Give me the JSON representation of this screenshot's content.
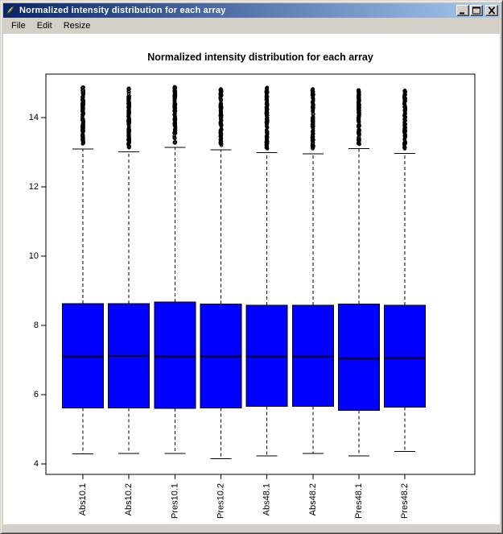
{
  "window": {
    "title": "Normalized intensity distribution for each array",
    "icon": "feather-icon",
    "controls": [
      {
        "name": "minimize",
        "icon": "minimize-icon"
      },
      {
        "name": "maximize",
        "icon": "maximize-icon"
      },
      {
        "name": "close",
        "icon": "close-icon"
      }
    ],
    "colors": {
      "titlebar_from": "#0a246a",
      "titlebar_to": "#a6caf0",
      "chrome": "#d4d0c8"
    }
  },
  "menu": {
    "items": [
      "File",
      "Edit",
      "Resize"
    ]
  },
  "chart_data": {
    "type": "boxplot",
    "title": "Normalized intensity distribution for each array",
    "categories": [
      "Abs10.1",
      "Abs10.2",
      "Pres10.1",
      "Pres10.2",
      "Abs48.1",
      "Abs48.2",
      "Pres48.1",
      "Pres48.2"
    ],
    "y_ticks": [
      4,
      6,
      8,
      10,
      12,
      14
    ],
    "ylim": [
      3.7,
      15.25
    ],
    "grid": false,
    "legend": "none",
    "box_fill": "#0000ff",
    "stroke_color": "#000000",
    "series": [
      {
        "name": "Abs10.1",
        "low": 4.29,
        "q1": 5.62,
        "median": 7.11,
        "q3": 8.63,
        "high": 13.09,
        "outliers_max": 14.87
      },
      {
        "name": "Abs10.2",
        "low": 4.3,
        "q1": 5.62,
        "median": 7.12,
        "q3": 8.63,
        "high": 13.01,
        "outliers_max": 14.84
      },
      {
        "name": "Pres10.1",
        "low": 4.3,
        "q1": 5.6,
        "median": 7.1,
        "q3": 8.67,
        "high": 13.13,
        "outliers_max": 14.88
      },
      {
        "name": "Pres10.2",
        "low": 4.15,
        "q1": 5.62,
        "median": 7.11,
        "q3": 8.62,
        "high": 13.07,
        "outliers_max": 14.82
      },
      {
        "name": "Abs48.1",
        "low": 4.24,
        "q1": 5.66,
        "median": 7.1,
        "q3": 8.58,
        "high": 12.98,
        "outliers_max": 14.86
      },
      {
        "name": "Abs48.2",
        "low": 4.31,
        "q1": 5.66,
        "median": 7.1,
        "q3": 8.58,
        "high": 12.95,
        "outliers_max": 14.82
      },
      {
        "name": "Pres48.1",
        "low": 4.24,
        "q1": 5.55,
        "median": 7.04,
        "q3": 8.62,
        "high": 13.1,
        "outliers_max": 14.79
      },
      {
        "name": "Pres48.2",
        "low": 4.36,
        "q1": 5.64,
        "median": 7.06,
        "q3": 8.58,
        "high": 12.96,
        "outliers_max": 14.78
      }
    ]
  }
}
